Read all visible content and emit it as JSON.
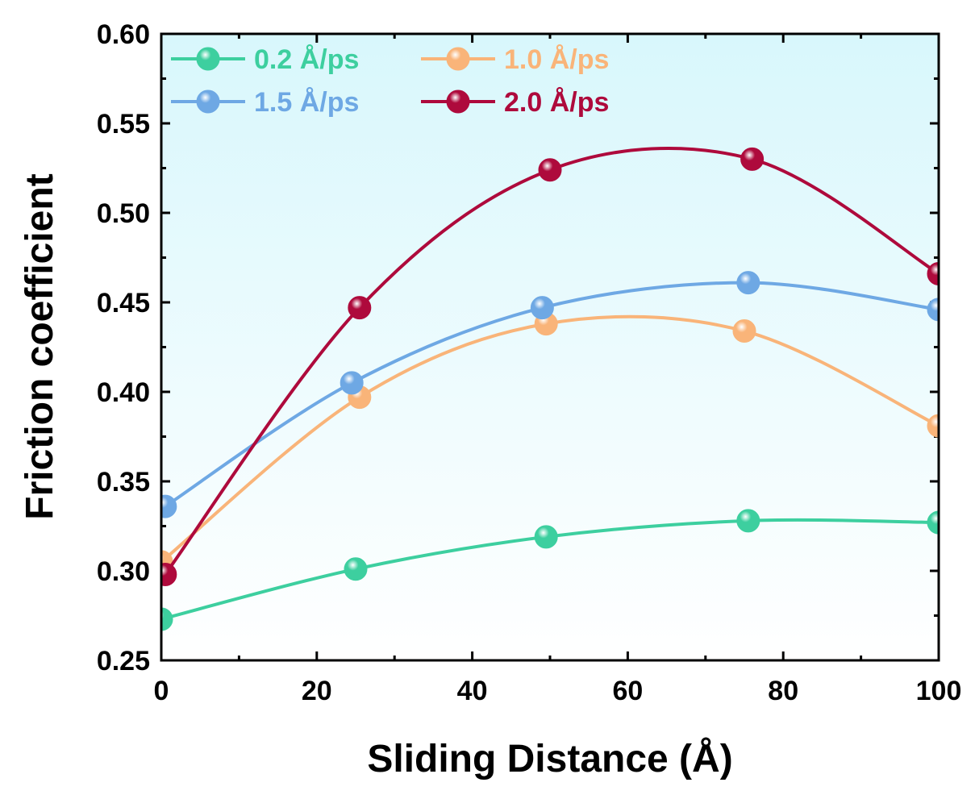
{
  "chart_data": {
    "type": "line",
    "title": "",
    "xlabel": "Sliding Distance (Å)",
    "ylabel": "Friction coefficient",
    "xlim": [
      0,
      100
    ],
    "ylim": [
      0.25,
      0.6
    ],
    "x_ticks": [
      0,
      20,
      40,
      60,
      80,
      100
    ],
    "x_tick_labels": [
      "0",
      "20",
      "40",
      "60",
      "80",
      "100"
    ],
    "y_ticks": [
      0.25,
      0.3,
      0.35,
      0.4,
      0.45,
      0.5,
      0.55,
      0.6
    ],
    "y_tick_labels": [
      "0.25",
      "0.30",
      "0.35",
      "0.40",
      "0.45",
      "0.50",
      "0.55",
      "0.60"
    ],
    "grid": false,
    "legend_position": "top-left",
    "series": [
      {
        "name": "0.2 Å/ps",
        "color": "#3dcf9f",
        "x": [
          0,
          25,
          49.5,
          75.5,
          100
        ],
        "values": [
          0.273,
          0.301,
          0.319,
          0.328,
          0.327
        ]
      },
      {
        "name": "1.0 Å/ps",
        "color": "#f9b479",
        "x": [
          0,
          25.5,
          49.5,
          75,
          100
        ],
        "values": [
          0.305,
          0.397,
          0.438,
          0.434,
          0.381
        ]
      },
      {
        "name": "1.5 Å/ps",
        "color": "#6ea8e4",
        "x": [
          0.5,
          24.5,
          49,
          75.5,
          100
        ],
        "values": [
          0.336,
          0.405,
          0.447,
          0.461,
          0.446
        ]
      },
      {
        "name": "2.0 Å/ps",
        "color": "#ae0a3c",
        "x": [
          0.5,
          25.5,
          50,
          76,
          100
        ],
        "values": [
          0.298,
          0.447,
          0.524,
          0.53,
          0.466
        ]
      }
    ]
  }
}
